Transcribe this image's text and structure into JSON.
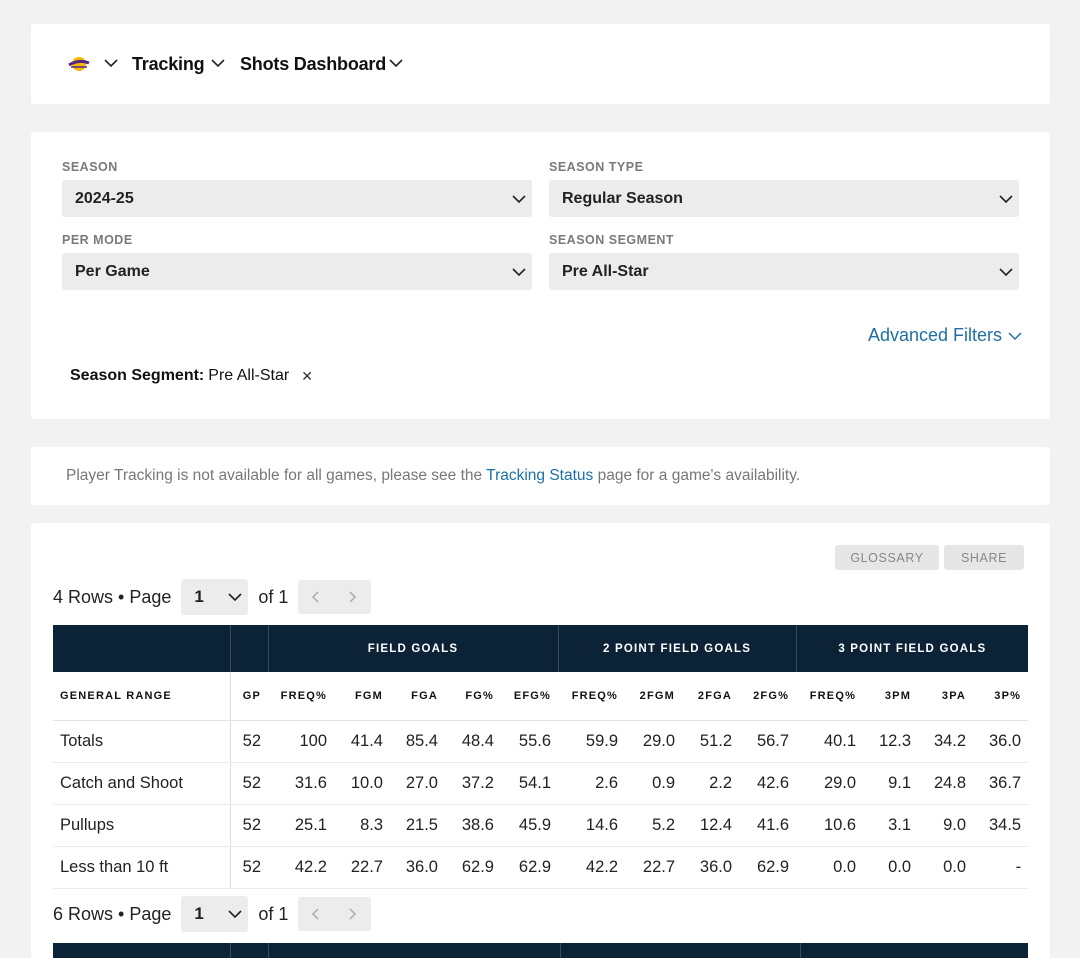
{
  "nav": {
    "logo_icon": "lakers-logo-icon",
    "menu_1": "Tracking",
    "menu_2": "Shots Dashboard"
  },
  "filters": {
    "season": {
      "label": "SEASON",
      "value": "2024-25"
    },
    "season_type": {
      "label": "SEASON TYPE",
      "value": "Regular Season"
    },
    "per_mode": {
      "label": "PER MODE",
      "value": "Per Game"
    },
    "season_segment": {
      "label": "SEASON SEGMENT",
      "value": "Pre All-Star"
    },
    "advanced": "Advanced Filters",
    "chip": {
      "key": "Season Segment:",
      "value": "Pre All-Star"
    }
  },
  "notice": {
    "before": "Player Tracking is not available for all games, please see the ",
    "link": "Tracking Status",
    "after": " page for a game's availability."
  },
  "buttons": {
    "glossary": "GLOSSARY",
    "share": "SHARE"
  },
  "pager1": {
    "rows": "4 Rows • Page",
    "page": "1",
    "of": "of 1"
  },
  "pager2": {
    "rows": "6 Rows • Page",
    "page": "1",
    "of": "of 1"
  },
  "table": {
    "groups": [
      "FIELD GOALS",
      "2 POINT FIELD GOALS",
      "3 POINT FIELD GOALS"
    ],
    "columns": [
      "GENERAL RANGE",
      "GP",
      "FREQ%",
      "FGM",
      "FGA",
      "FG%",
      "EFG%",
      "FREQ%",
      "2FGM",
      "2FGA",
      "2FG%",
      "FREQ%",
      "3PM",
      "3PA",
      "3P%"
    ],
    "rows": [
      [
        "Totals",
        "52",
        "100",
        "41.4",
        "85.4",
        "48.4",
        "55.6",
        "59.9",
        "29.0",
        "51.2",
        "56.7",
        "40.1",
        "12.3",
        "34.2",
        "36.0"
      ],
      [
        "Catch and Shoot",
        "52",
        "31.6",
        "10.0",
        "27.0",
        "37.2",
        "54.1",
        "2.6",
        "0.9",
        "2.2",
        "42.6",
        "29.0",
        "9.1",
        "24.8",
        "36.7"
      ],
      [
        "Pullups",
        "52",
        "25.1",
        "8.3",
        "21.5",
        "38.6",
        "45.9",
        "14.6",
        "5.2",
        "12.4",
        "41.6",
        "10.6",
        "3.1",
        "9.0",
        "34.5"
      ],
      [
        "Less than 10 ft",
        "52",
        "42.2",
        "22.7",
        "36.0",
        "62.9",
        "62.9",
        "42.2",
        "22.7",
        "36.0",
        "62.9",
        "0.0",
        "0.0",
        "0.0",
        "-"
      ]
    ]
  }
}
